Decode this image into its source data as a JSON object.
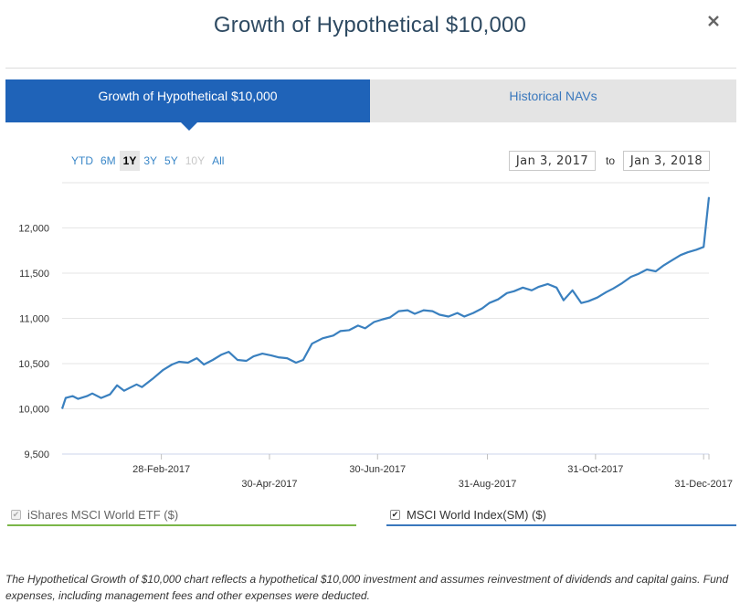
{
  "modal": {
    "title": "Growth of Hypothetical $10,000",
    "close_glyph": "×"
  },
  "tabs": [
    {
      "label": "Growth of Hypothetical $10,000",
      "active": true
    },
    {
      "label": "Historical NAVs",
      "active": false
    }
  ],
  "range_buttons": [
    {
      "label": "YTD",
      "state": "enabled"
    },
    {
      "label": "6M",
      "state": "enabled"
    },
    {
      "label": "1Y",
      "state": "selected"
    },
    {
      "label": "3Y",
      "state": "enabled"
    },
    {
      "label": "5Y",
      "state": "enabled"
    },
    {
      "label": "10Y",
      "state": "disabled"
    },
    {
      "label": "All",
      "state": "enabled"
    }
  ],
  "date_range": {
    "from": "Jan 3, 2017",
    "separator": "to",
    "to": "Jan 3, 2018"
  },
  "legend": [
    {
      "label": "iShares MSCI World ETF ($)",
      "checked": true,
      "disabled": true,
      "color": "#7ab648"
    },
    {
      "label": "MSCI World Index(SM) ($)",
      "checked": true,
      "disabled": false,
      "color": "#3a78bd"
    }
  ],
  "disclaimer": "The Hypothetical Growth of $10,000 chart reflects a hypothetical $10,000 investment and assumes reinvestment of dividends and capital gains. Fund expenses, including management fees and other expenses were deducted.",
  "colors": {
    "accent": "#1f63b8",
    "line": "#3a80bf",
    "link": "#3a87c8",
    "etf_green": "#7ab648"
  },
  "icons": {
    "close": "close-icon",
    "checkbox": "checkmark-icon"
  },
  "chart_data": {
    "type": "line",
    "series": [
      {
        "name": "MSCI World Index(SM) ($)",
        "points": [
          [
            "2017-01-03",
            10000
          ],
          [
            "2017-01-05",
            10120
          ],
          [
            "2017-01-09",
            10140
          ],
          [
            "2017-01-12",
            10110
          ],
          [
            "2017-01-17",
            10140
          ],
          [
            "2017-01-20",
            10170
          ],
          [
            "2017-01-25",
            10120
          ],
          [
            "2017-01-30",
            10160
          ],
          [
            "2017-02-03",
            10260
          ],
          [
            "2017-02-07",
            10200
          ],
          [
            "2017-02-10",
            10230
          ],
          [
            "2017-02-14",
            10270
          ],
          [
            "2017-02-17",
            10240
          ],
          [
            "2017-02-23",
            10330
          ],
          [
            "2017-03-01",
            10430
          ],
          [
            "2017-03-06",
            10490
          ],
          [
            "2017-03-10",
            10520
          ],
          [
            "2017-03-15",
            10510
          ],
          [
            "2017-03-20",
            10560
          ],
          [
            "2017-03-24",
            10490
          ],
          [
            "2017-03-29",
            10540
          ],
          [
            "2017-04-03",
            10600
          ],
          [
            "2017-04-07",
            10630
          ],
          [
            "2017-04-12",
            10540
          ],
          [
            "2017-04-17",
            10530
          ],
          [
            "2017-04-21",
            10580
          ],
          [
            "2017-04-26",
            10610
          ],
          [
            "2017-05-01",
            10590
          ],
          [
            "2017-05-05",
            10570
          ],
          [
            "2017-05-10",
            10560
          ],
          [
            "2017-05-15",
            10510
          ],
          [
            "2017-05-19",
            10540
          ],
          [
            "2017-05-24",
            10720
          ],
          [
            "2017-05-30",
            10780
          ],
          [
            "2017-06-05",
            10810
          ],
          [
            "2017-06-09",
            10860
          ],
          [
            "2017-06-14",
            10870
          ],
          [
            "2017-06-19",
            10920
          ],
          [
            "2017-06-23",
            10890
          ],
          [
            "2017-06-28",
            10960
          ],
          [
            "2017-07-03",
            10990
          ],
          [
            "2017-07-07",
            11010
          ],
          [
            "2017-07-12",
            11080
          ],
          [
            "2017-07-17",
            11090
          ],
          [
            "2017-07-21",
            11050
          ],
          [
            "2017-07-26",
            11090
          ],
          [
            "2017-07-31",
            11080
          ],
          [
            "2017-08-04",
            11040
          ],
          [
            "2017-08-09",
            11020
          ],
          [
            "2017-08-14",
            11060
          ],
          [
            "2017-08-18",
            11020
          ],
          [
            "2017-08-23",
            11060
          ],
          [
            "2017-08-28",
            11110
          ],
          [
            "2017-09-01",
            11170
          ],
          [
            "2017-09-06",
            11210
          ],
          [
            "2017-09-11",
            11280
          ],
          [
            "2017-09-15",
            11300
          ],
          [
            "2017-09-20",
            11340
          ],
          [
            "2017-09-25",
            11310
          ],
          [
            "2017-09-29",
            11350
          ],
          [
            "2017-10-04",
            11380
          ],
          [
            "2017-10-09",
            11340
          ],
          [
            "2017-10-13",
            11200
          ],
          [
            "2017-10-18",
            11310
          ],
          [
            "2017-10-23",
            11170
          ],
          [
            "2017-10-27",
            11190
          ],
          [
            "2017-11-01",
            11230
          ],
          [
            "2017-11-06",
            11290
          ],
          [
            "2017-11-10",
            11330
          ],
          [
            "2017-11-15",
            11390
          ],
          [
            "2017-11-20",
            11460
          ],
          [
            "2017-11-24",
            11490
          ],
          [
            "2017-11-29",
            11540
          ],
          [
            "2017-12-04",
            11520
          ],
          [
            "2017-12-08",
            11580
          ],
          [
            "2017-12-13",
            11640
          ],
          [
            "2017-12-18",
            11700
          ],
          [
            "2017-12-22",
            11730
          ],
          [
            "2017-12-27",
            11760
          ],
          [
            "2017-12-31",
            11790
          ],
          [
            "2018-01-03",
            12340
          ]
        ]
      }
    ],
    "y_ticks": [
      "9,500",
      "10,000",
      "10,500",
      "11,000",
      "11,500",
      "12,000"
    ],
    "x_ticks": [
      "28-Feb-2017",
      "30-Apr-2017",
      "30-Jun-2017",
      "31-Aug-2017",
      "31-Oct-2017",
      "31-Dec-2017"
    ],
    "ylim": [
      9500,
      12500
    ],
    "grid": true,
    "title": "",
    "xlabel": "",
    "ylabel": ""
  }
}
